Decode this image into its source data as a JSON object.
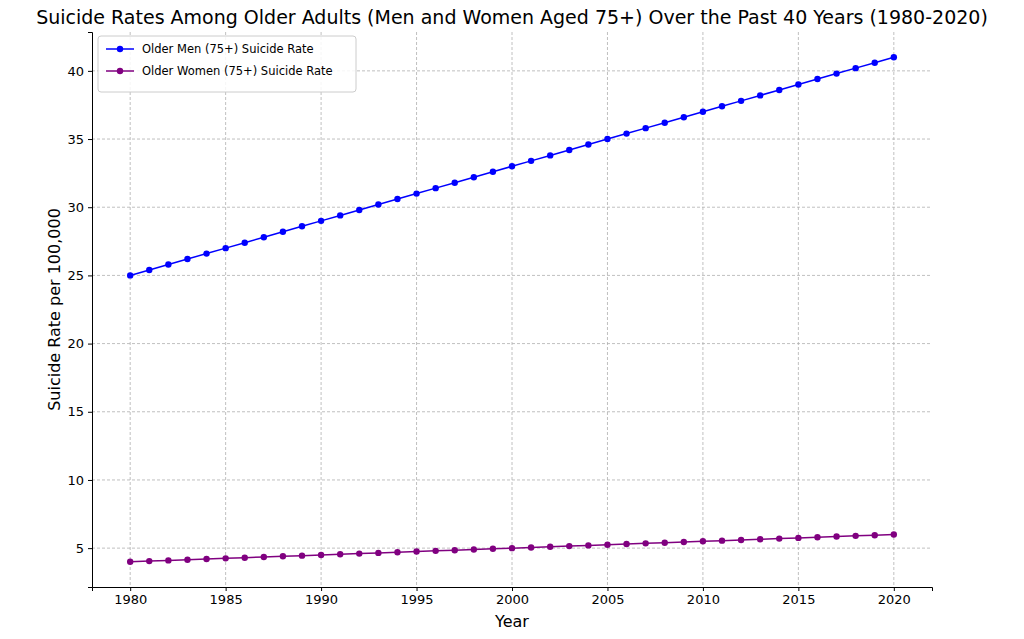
{
  "chart_data": {
    "type": "line",
    "title": "Suicide Rates Among Older Adults (Men and Women Aged 75+) Over the Past 40 Years (1980-2020)",
    "x_label": "Year",
    "y_label": "Suicide Rate per 100,000",
    "x": [
      1980,
      1981,
      1982,
      1983,
      1984,
      1985,
      1986,
      1987,
      1988,
      1989,
      1990,
      1991,
      1992,
      1993,
      1994,
      1995,
      1996,
      1997,
      1998,
      1999,
      2000,
      2001,
      2002,
      2003,
      2004,
      2005,
      2006,
      2007,
      2008,
      2009,
      2010,
      2011,
      2012,
      2013,
      2014,
      2015,
      2016,
      2017,
      2018,
      2019,
      2020
    ],
    "series": [
      {
        "name": "Older Men (75+) Suicide Rate",
        "color": "#0000ff",
        "marker": "circle",
        "line_style": "solid",
        "values": [
          25,
          25.4,
          25.8,
          26.2,
          26.6,
          27,
          27.4,
          27.8,
          28.2,
          28.6,
          29,
          29.4,
          29.8,
          30.2,
          30.6,
          31,
          31.4,
          31.8,
          32.2,
          32.6,
          33,
          33.4,
          33.8,
          34.2,
          34.6,
          35,
          35.4,
          35.8,
          36.2,
          36.6,
          37,
          37.4,
          37.8,
          38.2,
          38.6,
          39,
          39.4,
          39.8,
          40.2,
          40.6,
          41
        ]
      },
      {
        "name": "Older Women (75+) Suicide Rate",
        "color": "#800080",
        "marker": "circle",
        "line_style": "solid",
        "values": [
          4,
          4.05,
          4.1,
          4.15,
          4.2,
          4.25,
          4.3,
          4.35,
          4.4,
          4.45,
          4.5,
          4.55,
          4.6,
          4.65,
          4.7,
          4.75,
          4.8,
          4.85,
          4.9,
          4.95,
          5,
          5.05,
          5.1,
          5.15,
          5.2,
          5.25,
          5.3,
          5.35,
          5.4,
          5.45,
          5.5,
          5.55,
          5.6,
          5.65,
          5.7,
          5.75,
          5.8,
          5.85,
          5.9,
          5.95,
          6
        ]
      }
    ],
    "xlim": [
      1978,
      2022
    ],
    "xticks": [
      1980,
      1985,
      1990,
      1995,
      2000,
      2005,
      2010,
      2015,
      2020
    ],
    "ylim": [
      2.15,
      42.85
    ],
    "yticks": [
      5,
      10,
      15,
      20,
      25,
      30,
      35,
      40
    ],
    "grid": true,
    "legend": "upper left"
  }
}
